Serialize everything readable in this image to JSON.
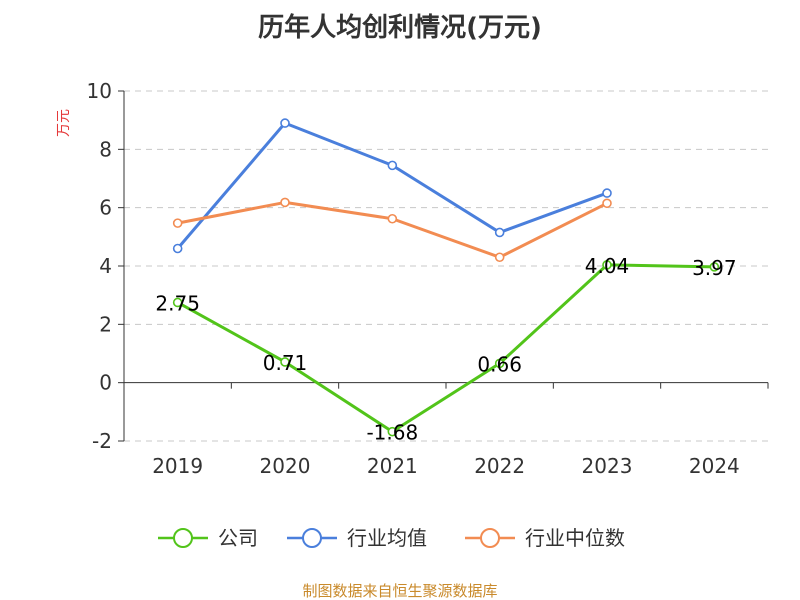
{
  "chart_data": {
    "type": "line",
    "title": "历年人均创利情况(万元)",
    "ylabel": "万元",
    "xlabel": "",
    "categories": [
      "2019",
      "2020",
      "2021",
      "2022",
      "2023",
      "2024"
    ],
    "ylim": [
      -2,
      10
    ],
    "yticks": [
      -2,
      0,
      2,
      4,
      6,
      8,
      10
    ],
    "grid": true,
    "legend_position": "bottom",
    "series": [
      {
        "name": "公司",
        "color": "#52c41a",
        "values": [
          2.75,
          0.71,
          -1.68,
          0.66,
          4.04,
          3.97
        ],
        "labels": [
          "2.75",
          "0.71",
          "-1.68",
          "0.66",
          "4.04",
          "3.97"
        ]
      },
      {
        "name": "行业均值",
        "color": "#4a7fdc",
        "values": [
          4.6,
          8.9,
          7.45,
          5.15,
          6.5,
          null
        ]
      },
      {
        "name": "行业中位数",
        "color": "#f28c52",
        "values": [
          5.47,
          6.18,
          5.62,
          4.3,
          6.15,
          null
        ]
      }
    ]
  },
  "source": "制图数据来自恒生聚源数据库"
}
